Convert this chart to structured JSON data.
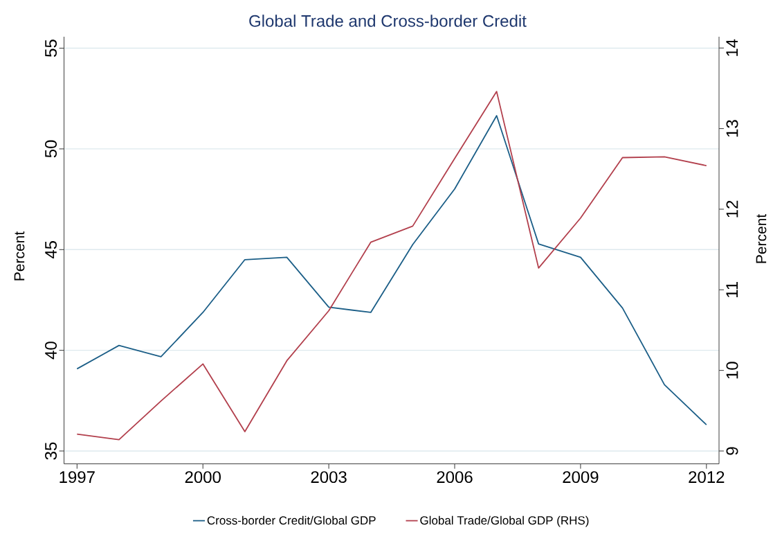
{
  "chart_data": {
    "type": "line",
    "title": "Global Trade and Cross-border Credit",
    "ylabel": "Percent",
    "y2label": "Percent",
    "x": [
      1997,
      1998,
      1999,
      2000,
      2001,
      2002,
      2003,
      2004,
      2005,
      2006,
      2007,
      2008,
      2009,
      2010,
      2011,
      2012
    ],
    "xlim": [
      1996.69,
      2012.3
    ],
    "ylim": [
      34.36,
      55.57
    ],
    "y2lim": [
      8.84,
      14.14
    ],
    "xticks": [
      1997,
      2000,
      2003,
      2006,
      2009,
      2012
    ],
    "yticks": [
      35,
      40,
      45,
      50,
      55
    ],
    "y2ticks": [
      9,
      10,
      11,
      12,
      13,
      14
    ],
    "grid": "y",
    "legend": "bottom",
    "line_style": "solid",
    "marker": "none",
    "series": [
      {
        "name": "Cross-border Credit/Global GDP",
        "color": "#1b5e87",
        "values": [
          39.08,
          40.24,
          39.68,
          41.88,
          44.5,
          44.62,
          42.14,
          41.88,
          45.25,
          48.01,
          51.65,
          45.28,
          44.62,
          42.1,
          38.29,
          36.3
        ]
      },
      {
        "name": "Global Trade/Global GDP (RHS)",
        "color": "#b23f4c",
        "axis": "y2",
        "values": [
          9.21,
          9.14,
          9.62,
          10.08,
          9.24,
          10.12,
          10.74,
          11.59,
          11.79,
          12.63,
          13.46,
          11.27,
          11.89,
          12.64,
          12.65,
          12.54
        ]
      }
    ]
  }
}
